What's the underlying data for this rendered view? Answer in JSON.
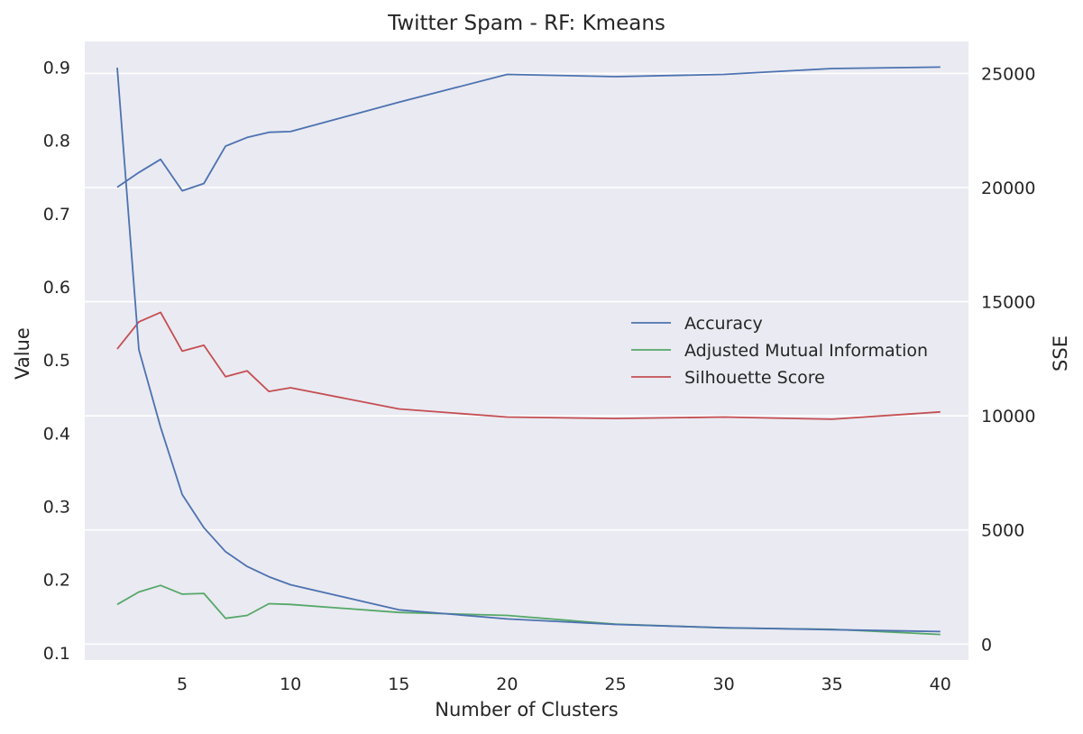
{
  "chart_data": {
    "type": "line",
    "title": "Twitter Spam - RF: Kmeans",
    "xlabel": "Number of Clusters",
    "ylabel": "Value",
    "y2label": "SSE",
    "xlim": [
      0.5,
      41.3
    ],
    "ylim": [
      0.09,
      0.935
    ],
    "y2lim": [
      -700,
      26400
    ],
    "xticks": [
      5,
      10,
      15,
      20,
      25,
      30,
      35,
      40
    ],
    "yticks": [
      0.1,
      0.2,
      0.3,
      0.4,
      0.5,
      0.6,
      0.7,
      0.8,
      0.9
    ],
    "y2ticks": [
      0,
      5000,
      10000,
      15000,
      20000,
      25000
    ],
    "legend_position": "center-right",
    "background": "#eaeaf2",
    "series": [
      {
        "name": "Accuracy",
        "color": "#4c72b0",
        "axis": "left",
        "x": [
          2,
          3,
          4,
          5,
          6,
          7,
          8,
          9,
          10,
          15,
          20,
          25,
          30,
          35,
          40
        ],
        "y": [
          0.736,
          0.756,
          0.774,
          0.731,
          0.741,
          0.792,
          0.804,
          0.811,
          0.812,
          0.852,
          0.89,
          0.887,
          0.89,
          0.898,
          0.9
        ]
      },
      {
        "name": "Adjusted Mutual Information",
        "color": "#55a868",
        "axis": "left",
        "x": [
          2,
          3,
          4,
          5,
          6,
          7,
          8,
          9,
          10,
          15,
          20,
          25,
          30,
          35,
          40
        ],
        "y": [
          0.166,
          0.183,
          0.192,
          0.18,
          0.181,
          0.147,
          0.151,
          0.167,
          0.166,
          0.155,
          0.151,
          0.139,
          0.134,
          0.132,
          0.125
        ]
      },
      {
        "name": "Silhouette Score",
        "color": "#c44e52",
        "axis": "left",
        "x": [
          2,
          3,
          4,
          5,
          6,
          7,
          8,
          9,
          10,
          15,
          20,
          25,
          30,
          35,
          40
        ],
        "y": [
          0.515,
          0.552,
          0.565,
          0.512,
          0.52,
          0.477,
          0.485,
          0.457,
          0.462,
          0.433,
          0.422,
          0.42,
          0.422,
          0.419,
          0.429
        ]
      },
      {
        "name": "SSE",
        "color": "#4c72b0",
        "axis": "right",
        "x": [
          2,
          3,
          4,
          5,
          6,
          7,
          8,
          9,
          10,
          15,
          20,
          25,
          30,
          35,
          40
        ],
        "y": [
          25250,
          12900,
          9500,
          6550,
          5100,
          4050,
          3400,
          2950,
          2600,
          1500,
          1100,
          860,
          720,
          630,
          550
        ]
      }
    ]
  }
}
